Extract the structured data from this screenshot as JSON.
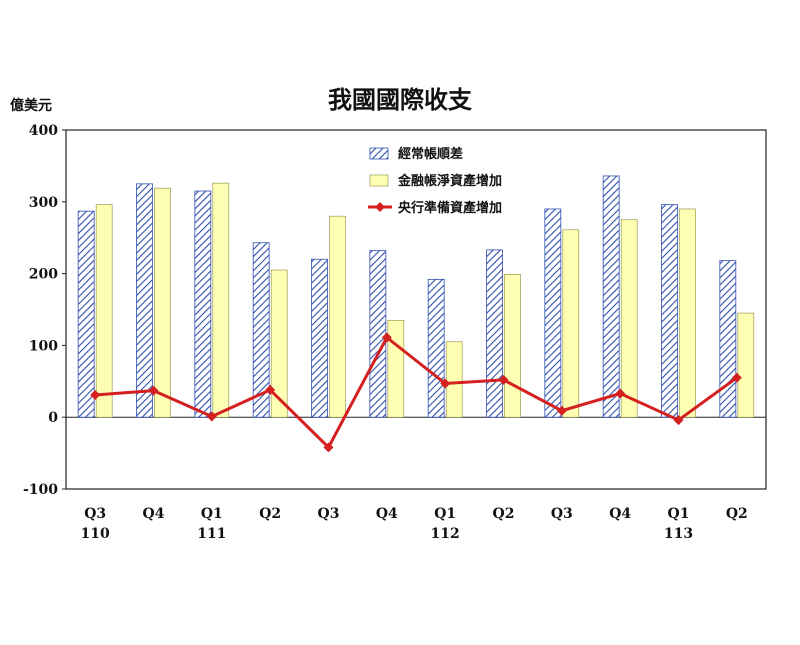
{
  "chart_data": {
    "type": "bar",
    "title": "我國國際收支",
    "ylabel": "億美元",
    "ylim": [
      -100,
      400
    ],
    "yticks": [
      400,
      300,
      200,
      100,
      0,
      -100
    ],
    "categories": [
      "Q3",
      "Q4",
      "Q1",
      "Q2",
      "Q3",
      "Q4",
      "Q1",
      "Q2",
      "Q3",
      "Q4",
      "Q1",
      "Q2"
    ],
    "year_labels": [
      {
        "index": 0,
        "label": "110"
      },
      {
        "index": 2,
        "label": "111"
      },
      {
        "index": 6,
        "label": "112"
      },
      {
        "index": 10,
        "label": "113"
      }
    ],
    "series": [
      {
        "name": "經常帳順差",
        "kind": "bar",
        "pattern": "hatch",
        "color": "#2f4fb0",
        "values": [
          287,
          325,
          315,
          243,
          220,
          232,
          192,
          233,
          290,
          336,
          296,
          218
        ]
      },
      {
        "name": "金融帳淨資產增加",
        "kind": "bar",
        "color": "#ffffb3",
        "values": [
          296,
          319,
          326,
          205,
          280,
          135,
          105,
          199,
          261,
          275,
          290,
          145
        ]
      },
      {
        "name": "央行準備資產增加",
        "kind": "line",
        "color": "#d42020",
        "values": [
          31,
          37,
          1,
          38,
          -42,
          111,
          47,
          52,
          9,
          33,
          -4,
          55
        ]
      }
    ],
    "legend_position": "top-center"
  }
}
